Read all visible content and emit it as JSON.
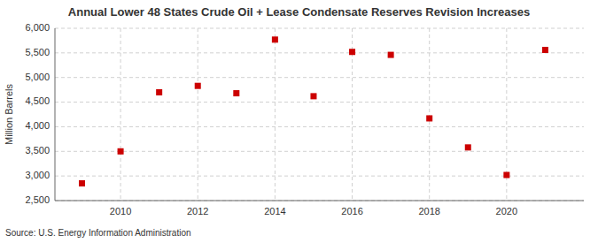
{
  "chart_data": {
    "type": "scatter",
    "title": "Annual Lower 48 States Crude Oil + Lease Condensate Reserves Revision Increases",
    "ylabel": "Million Barrels",
    "annotations": [
      "Source: U.S. Energy Information Administration"
    ],
    "x": [
      2009,
      2010,
      2011,
      2012,
      2013,
      2014,
      2015,
      2016,
      2017,
      2018,
      2019,
      2020,
      2021
    ],
    "values": [
      2850,
      3500,
      4700,
      4830,
      4680,
      5770,
      4620,
      5520,
      5460,
      4170,
      3580,
      3020,
      5560
    ],
    "color": "#cc0000",
    "marker": "square",
    "xlim": [
      2008.3,
      2022.0
    ],
    "ylim": [
      2500,
      6000
    ],
    "xticks": [
      2010,
      2012,
      2014,
      2016,
      2018,
      2020
    ],
    "yticks": [
      {
        "value": 2500,
        "label": "2,500"
      },
      {
        "value": 3000,
        "label": "3,000"
      },
      {
        "value": 3500,
        "label": "3,500"
      },
      {
        "value": 4000,
        "label": "4,000"
      },
      {
        "value": 4500,
        "label": "4,500"
      },
      {
        "value": 5000,
        "label": "5,000"
      },
      {
        "value": 5500,
        "label": "5,500"
      },
      {
        "value": 6000,
        "label": "6,000"
      }
    ],
    "grid": true
  }
}
